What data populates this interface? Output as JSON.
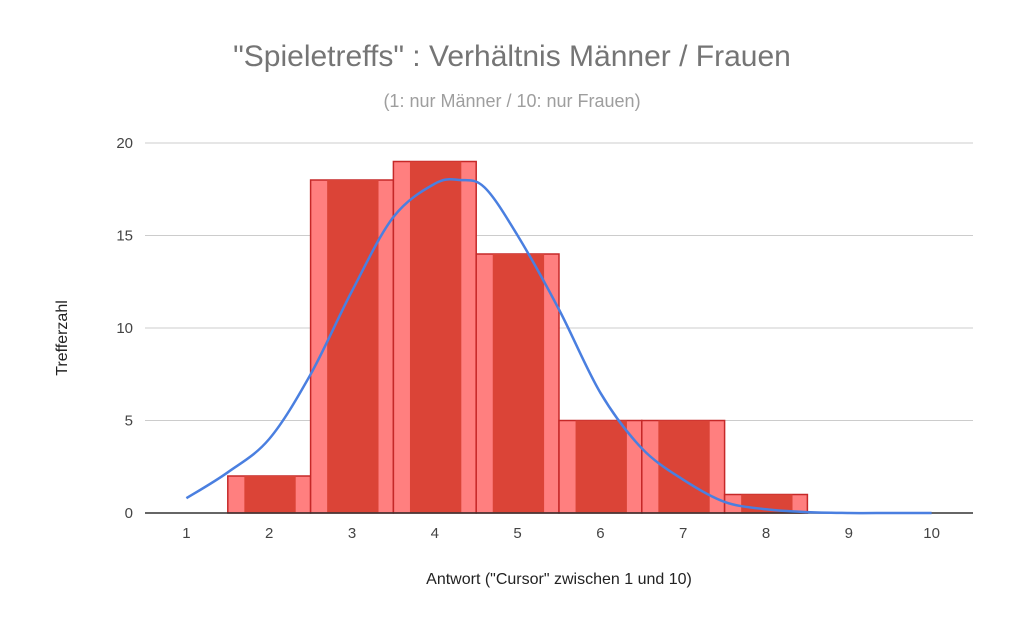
{
  "chart_data": {
    "type": "bar",
    "title": "\"Spieletreffs\" : Verhältnis Männer / Frauen",
    "subtitle": "(1: nur Männer / 10: nur Frauen)",
    "xlabel": "Antwort (\"Cursor\" zwischen 1 und 10)",
    "ylabel": "Trefferzahl",
    "categories": [
      "1",
      "2",
      "3",
      "4",
      "5",
      "6",
      "7",
      "8",
      "9",
      "10"
    ],
    "values": [
      0,
      2,
      18,
      19,
      14,
      5,
      5,
      1,
      0,
      0
    ],
    "ylim": [
      0,
      20
    ],
    "yticks": [
      0,
      5,
      10,
      15,
      20
    ],
    "grid": true,
    "curve": {
      "type": "line",
      "x": [
        1,
        1.5,
        2,
        2.5,
        3,
        3.5,
        4,
        4.3,
        4.6,
        5,
        5.5,
        6,
        6.5,
        7,
        7.5,
        8,
        8.5,
        9,
        9.5,
        10
      ],
      "y": [
        0.8,
        2.2,
        4,
        7.5,
        12,
        16,
        17.8,
        18,
        17.6,
        15,
        11,
        6.5,
        3.5,
        1.8,
        0.6,
        0.2,
        0.05,
        0,
        0,
        0
      ]
    },
    "colors": {
      "bar_outer": "#ff7f7f",
      "bar_inner": "#db4437",
      "bar_outline": "#c62828",
      "curve": "#4a7fe0",
      "grid": "#cccccc",
      "axis": "#333333"
    }
  }
}
